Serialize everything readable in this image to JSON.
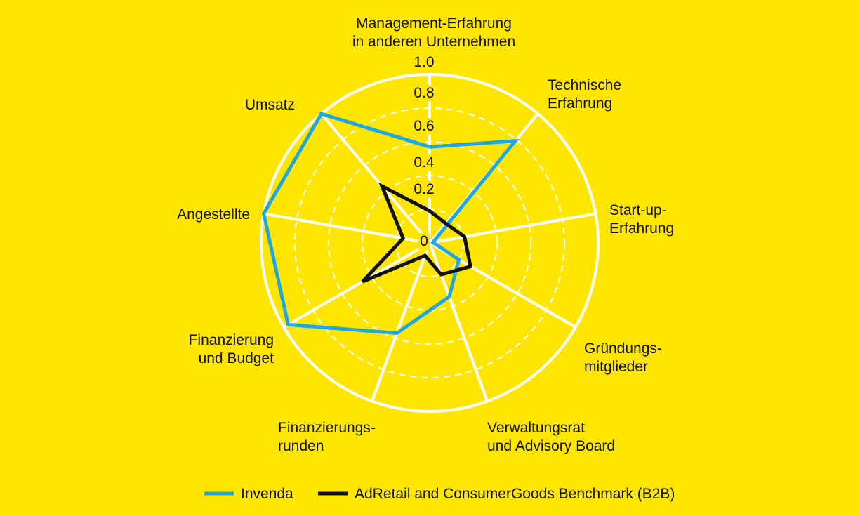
{
  "colors": {
    "background": "#FFE600",
    "grid": "#FFFFFF",
    "invenda": "#1EA7E1",
    "benchmark": "#111111"
  },
  "chart_data": {
    "type": "radar",
    "axes": [
      [
        "Management-Erfahrung",
        "in anderen Unternehmen"
      ],
      [
        "Technische",
        "Erfahrung"
      ],
      [
        "Start-up-",
        "Erfahrung"
      ],
      [
        "Gründungs-",
        "mitglieder"
      ],
      [
        "Verwaltungsrat",
        "und Advisory Board"
      ],
      [
        "Finanzierungs-",
        "runden"
      ],
      [
        "Finanzierung",
        "und Budget"
      ],
      [
        "Angestellte"
      ],
      [
        "Umsatz"
      ]
    ],
    "rlim": [
      0,
      1.0
    ],
    "ticks": [
      "0",
      "0.2",
      "0.4",
      "0.6",
      "0.8",
      "1.0"
    ],
    "grid": true,
    "legend_position": "bottom",
    "series": [
      {
        "name": "Invenda",
        "values": [
          0.57,
          0.79,
          0.02,
          0.2,
          0.34,
          0.57,
          0.97,
          1.0,
          1.0
        ]
      },
      {
        "name": "AdRetail and ConsumerGoods Benchmark (B2B)",
        "values": [
          0.19,
          0.15,
          0.21,
          0.28,
          0.2,
          0.08,
          0.46,
          0.16,
          0.44
        ]
      }
    ]
  }
}
